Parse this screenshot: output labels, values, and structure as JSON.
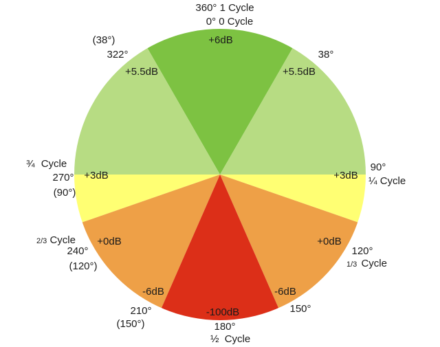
{
  "wedges": [
    {
      "id": "top",
      "color": "#7dc242"
    },
    {
      "id": "right-upper",
      "color": "#b7dc83"
    },
    {
      "id": "left-upper",
      "color": "#b7dc83"
    },
    {
      "id": "right-middle",
      "color": "#ffff73"
    },
    {
      "id": "left-middle",
      "color": "#ffff73"
    },
    {
      "id": "right-lower",
      "color": "#eea047"
    },
    {
      "id": "left-lower",
      "color": "#eea047"
    },
    {
      "id": "bottom",
      "color": "#dc2f18"
    }
  ],
  "labels": {
    "top_deg": "360° 1 Cycle",
    "top_zero": "0° 0 Cycle",
    "top_db": "+6dB",
    "left_upper_paren": "(38°)",
    "left_upper_deg": "322°",
    "left_upper_db": "+5.5dB",
    "right_upper_deg": "38°",
    "right_upper_db": "+5.5dB",
    "left_three_quarter_frac": "¾",
    "left_three_quarter_word": "Cycle",
    "left_270": "270°",
    "left_middle_db": "+3dB",
    "left_90_paren": "(90°)",
    "right_90": "90°",
    "right_middle_db": "+3dB",
    "right_quarter_frac": "¼",
    "right_quarter_word": "Cycle",
    "left_two_thirds_frac": "2/3",
    "left_two_thirds_word": "Cycle",
    "left_240": "240°",
    "left_lower_db": "+0dB",
    "left_120_paren": "(120°)",
    "right_lower_db": "+0dB",
    "right_120": "120°",
    "right_third_frac": "1/3",
    "right_third_word": "Cycle",
    "left_bottom_db": "-6dB",
    "right_bottom_db": "-6dB",
    "left_210": "210°",
    "left_150_paren": "(150°)",
    "right_150": "150°",
    "bottom_db": "-100dB",
    "bottom_180": "180°",
    "bottom_half_frac": "½",
    "bottom_half_word": "Cycle"
  }
}
